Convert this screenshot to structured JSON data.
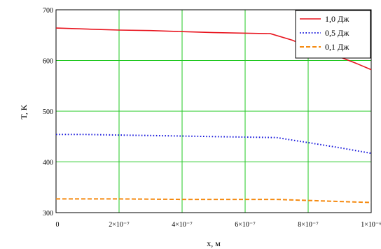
{
  "chart_data": {
    "type": "line",
    "title": "",
    "xlabel": "x, м",
    "ylabel": "T, K",
    "xlim": [
      0,
      1e-06
    ],
    "ylim": [
      300,
      700
    ],
    "grid": true,
    "legend_position": "top-right",
    "x_ticks": [
      {
        "value": 0,
        "label": "0"
      },
      {
        "value": 2e-07,
        "label": "2×10⁻⁷"
      },
      {
        "value": 4e-07,
        "label": "4×10⁻⁷"
      },
      {
        "value": 6e-07,
        "label": "6×10⁻⁷"
      },
      {
        "value": 8e-07,
        "label": "8×10⁻⁷"
      },
      {
        "value": 1e-06,
        "label": "1×10⁻⁶"
      }
    ],
    "y_ticks": [
      {
        "value": 300,
        "label": "300"
      },
      {
        "value": 400,
        "label": "400"
      },
      {
        "value": 500,
        "label": "500"
      },
      {
        "value": 600,
        "label": "600"
      },
      {
        "value": 700,
        "label": "700"
      }
    ],
    "series": [
      {
        "name": "1,0 Дж",
        "color": "#e8141e",
        "style": "solid",
        "points": [
          [
            0,
            664
          ],
          [
            1e-07,
            662
          ],
          [
            2e-07,
            660
          ],
          [
            3e-07,
            659
          ],
          [
            4e-07,
            657
          ],
          [
            5e-07,
            655
          ],
          [
            6e-07,
            654
          ],
          [
            6.8e-07,
            653
          ],
          [
            7.5e-07,
            640
          ],
          [
            8e-07,
            627
          ],
          [
            8.5e-07,
            617
          ],
          [
            9e-07,
            607
          ],
          [
            9.5e-07,
            595
          ],
          [
            1e-06,
            582
          ]
        ]
      },
      {
        "name": "0,5 Дж",
        "color": "#1a1adc",
        "style": "dotted",
        "points": [
          [
            0,
            454
          ],
          [
            1e-07,
            454
          ],
          [
            2e-07,
            453
          ],
          [
            3e-07,
            452
          ],
          [
            4e-07,
            451
          ],
          [
            5e-07,
            450
          ],
          [
            6e-07,
            449
          ],
          [
            7e-07,
            448
          ],
          [
            8e-07,
            438
          ],
          [
            9e-07,
            428
          ],
          [
            1e-06,
            417
          ]
        ]
      },
      {
        "name": "0,1 Дж",
        "color": "#f58a10",
        "style": "dashed",
        "points": [
          [
            0,
            327
          ],
          [
            2e-07,
            327
          ],
          [
            4e-07,
            326
          ],
          [
            6e-07,
            326
          ],
          [
            7e-07,
            326
          ],
          [
            8e-07,
            324
          ],
          [
            9e-07,
            322
          ],
          [
            1e-06,
            320
          ]
        ]
      }
    ]
  }
}
